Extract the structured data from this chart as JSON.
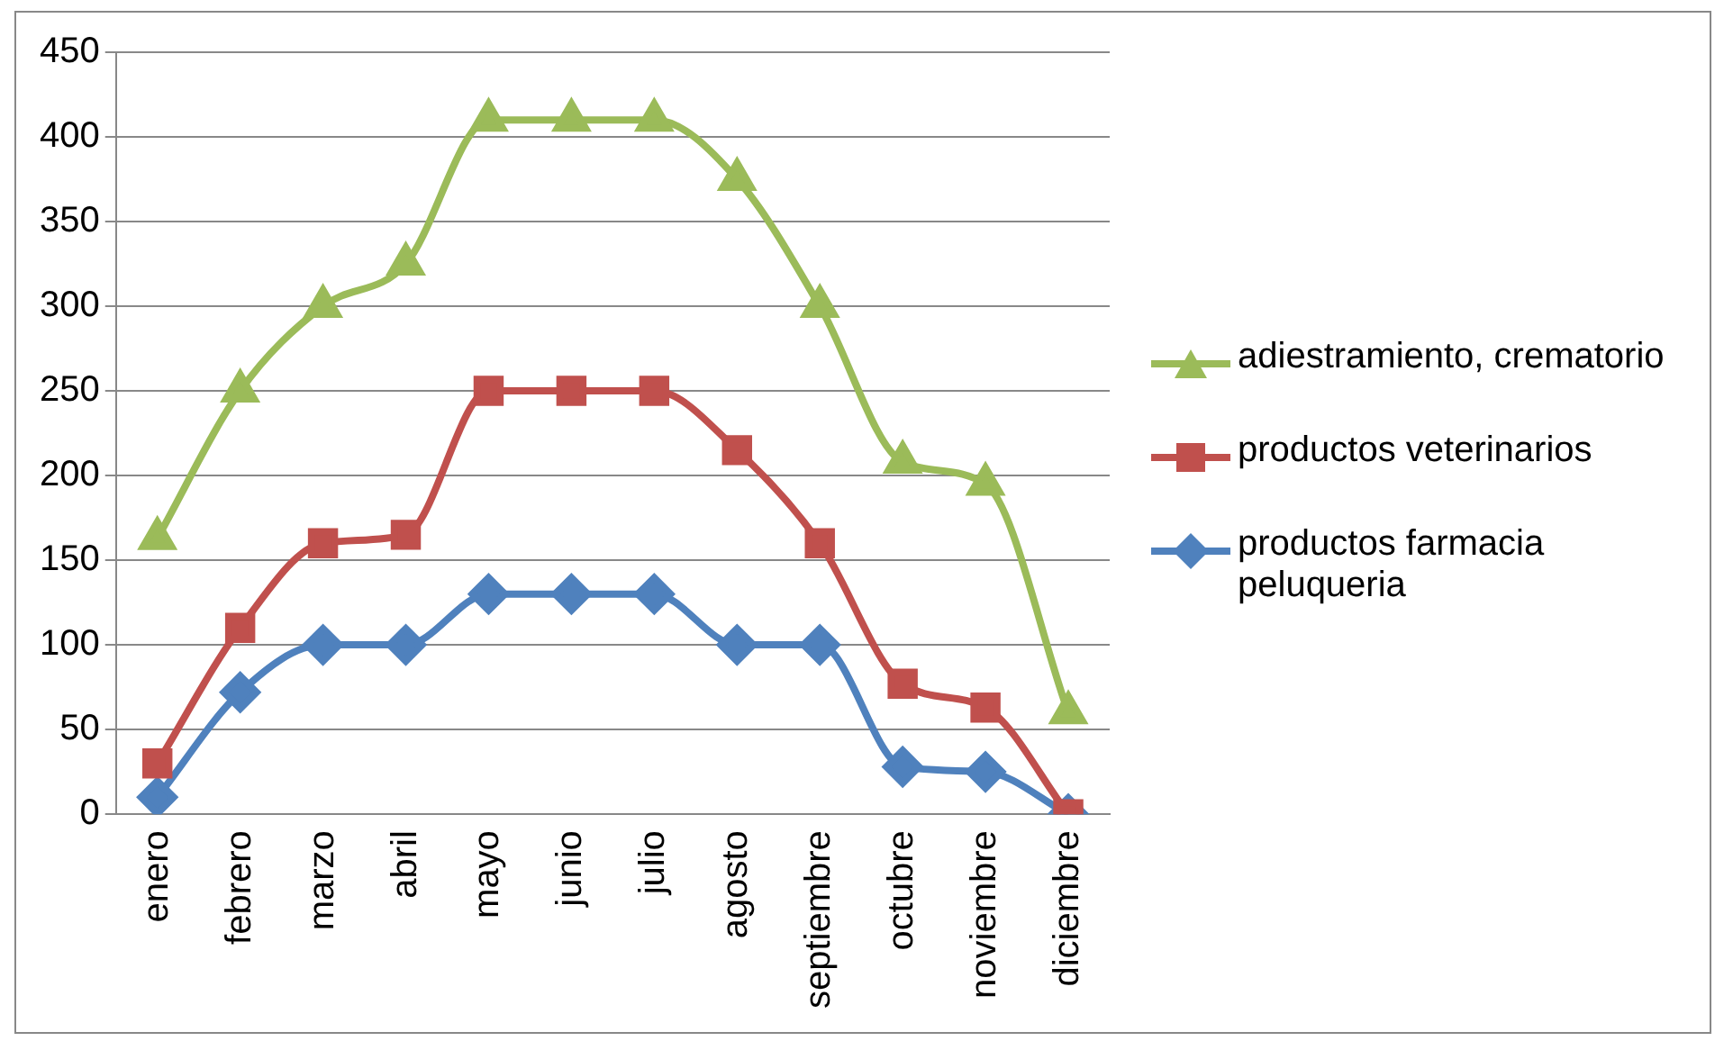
{
  "chart_data": {
    "type": "line",
    "categories": [
      "enero",
      "febrero",
      "marzo",
      "abril",
      "mayo",
      "junio",
      "julio",
      "agosto",
      "septiembre",
      "octubre",
      "noviembre",
      "diciembre"
    ],
    "series": [
      {
        "name": "adiestramiento, crematorio",
        "color": "#9bbb59",
        "marker": "triangle",
        "values": [
          163,
          250,
          300,
          325,
          410,
          410,
          410,
          375,
          300,
          208,
          195,
          60
        ]
      },
      {
        "name": "productos veterinarios",
        "color": "#c0504d",
        "marker": "square",
        "values": [
          30,
          110,
          160,
          165,
          250,
          250,
          250,
          215,
          160,
          77,
          63,
          0
        ]
      },
      {
        "name": "productos farmacia peluqueria",
        "color": "#4f81bd",
        "marker": "diamond",
        "values": [
          10,
          72,
          100,
          100,
          130,
          130,
          130,
          100,
          100,
          28,
          25,
          0
        ]
      }
    ],
    "ylim": [
      0,
      450
    ],
    "yticks": [
      0,
      50,
      100,
      150,
      200,
      250,
      300,
      350,
      400,
      450
    ],
    "grid": "y",
    "legend": "right"
  }
}
